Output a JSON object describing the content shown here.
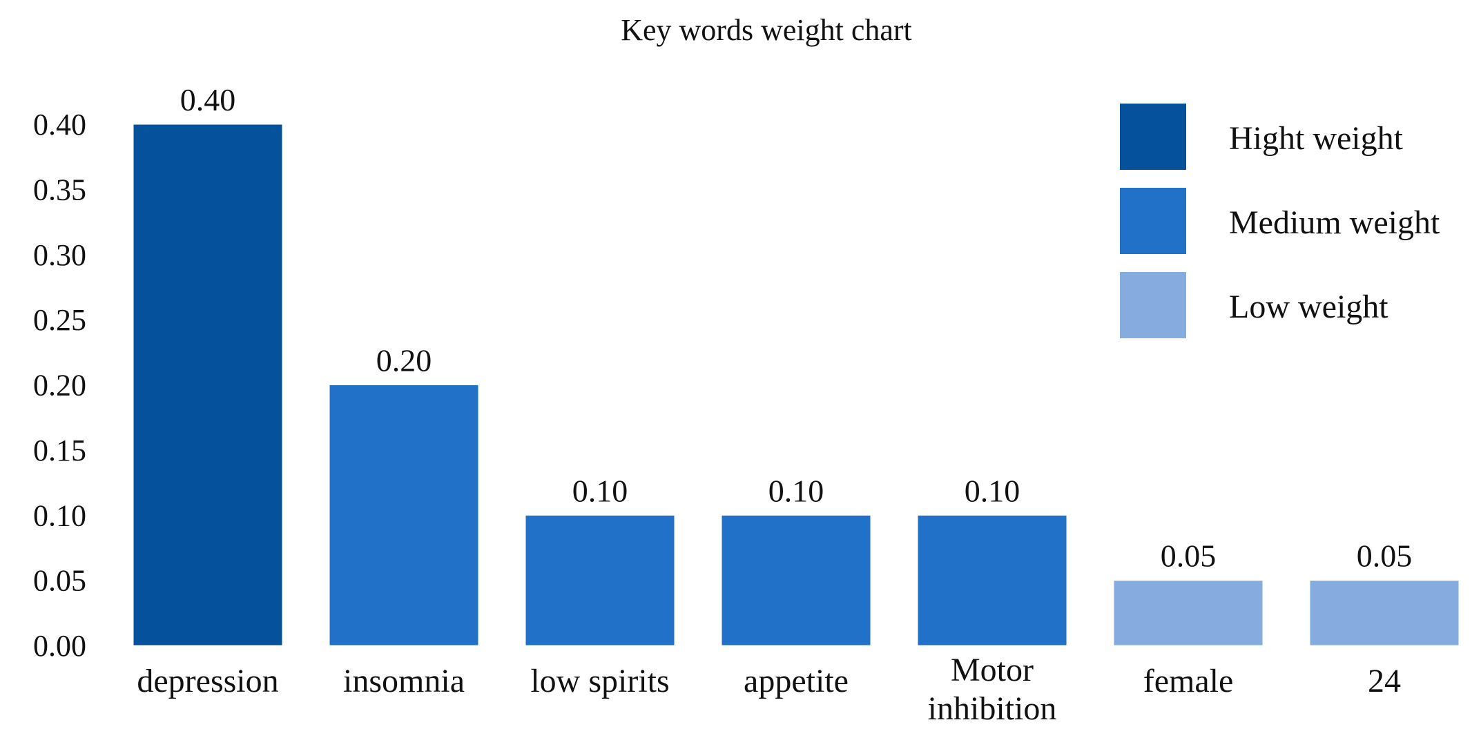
{
  "chart_data": {
    "type": "bar",
    "title": "Key words weight chart",
    "xlabel": "",
    "ylabel": "",
    "ylim": [
      0,
      0.4
    ],
    "yticks": [
      "0.00",
      "0.05",
      "0.10",
      "0.15",
      "0.20",
      "0.25",
      "0.30",
      "0.35",
      "0.40"
    ],
    "grid": false,
    "legend_position": "top-right",
    "categories": [
      [
        "depression"
      ],
      [
        "insomnia"
      ],
      [
        "low spirits"
      ],
      [
        "appetite"
      ],
      [
        "Motor",
        "inhibition"
      ],
      [
        "female"
      ],
      [
        "24"
      ]
    ],
    "values": [
      0.4,
      0.2,
      0.1,
      0.1,
      0.1,
      0.05,
      0.05
    ],
    "value_labels": [
      "0.40",
      "0.20",
      "0.10",
      "0.10",
      "0.10",
      "0.05",
      "0.05"
    ],
    "weight_levels": [
      "high",
      "medium",
      "medium",
      "medium",
      "medium",
      "low",
      "low"
    ],
    "legend": [
      {
        "key": "high",
        "label": "Hight weight",
        "color": "#06519b"
      },
      {
        "key": "medium",
        "label": "Medium weight",
        "color": "#2171c9"
      },
      {
        "key": "low",
        "label": "Low weight",
        "color": "#86abdf"
      }
    ]
  }
}
